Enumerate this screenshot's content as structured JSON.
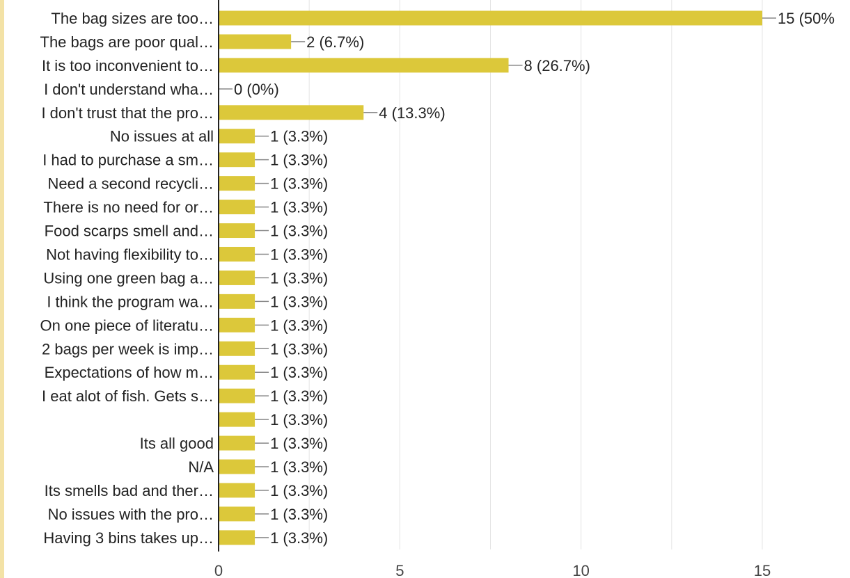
{
  "chart_data": {
    "type": "bar",
    "orientation": "horizontal",
    "categories": [
      "The bag sizes are too…",
      "The bags are poor qual…",
      "It is too inconvenient to…",
      "I don't understand wha…",
      "I don't trust that the pro…",
      "No issues at all",
      "I had to purchase a sm…",
      "Need a second recycli…",
      "There is no need for or…",
      "Food scarps smell and…",
      "Not having flexibility to…",
      "Using one green bag a…",
      "I think the program wa…",
      "On one piece of literatu…",
      "2 bags per week is imp…",
      "Expectations of how m…",
      "I eat alot of fish. Gets s…",
      "",
      "Its all good",
      "N/A",
      "Its smells bad and ther…",
      "No issues with the pro…",
      "Having 3 bins takes up…"
    ],
    "values": [
      15,
      2,
      8,
      0,
      4,
      1,
      1,
      1,
      1,
      1,
      1,
      1,
      1,
      1,
      1,
      1,
      1,
      1,
      1,
      1,
      1,
      1,
      1
    ],
    "value_labels": [
      "15 (50%",
      "2 (6.7%)",
      "8 (26.7%)",
      "0 (0%)",
      "4 (13.3%)",
      "1 (3.3%)",
      "1 (3.3%)",
      "1 (3.3%)",
      "1 (3.3%)",
      "1 (3.3%)",
      "1 (3.3%)",
      "1 (3.3%)",
      "1 (3.3%)",
      "1 (3.3%)",
      "1 (3.3%)",
      "1 (3.3%)",
      "1 (3.3%)",
      "1 (3.3%)",
      "1 (3.3%)",
      "1 (3.3%)",
      "1 (3.3%)",
      "1 (3.3%)",
      "1 (3.3%)"
    ],
    "x_ticks": [
      "0",
      "5",
      "10",
      "15"
    ],
    "xlim": [
      0,
      15
    ],
    "grid": true,
    "bar_color": "#dcc83a",
    "title": "",
    "xlabel": "",
    "ylabel": ""
  }
}
